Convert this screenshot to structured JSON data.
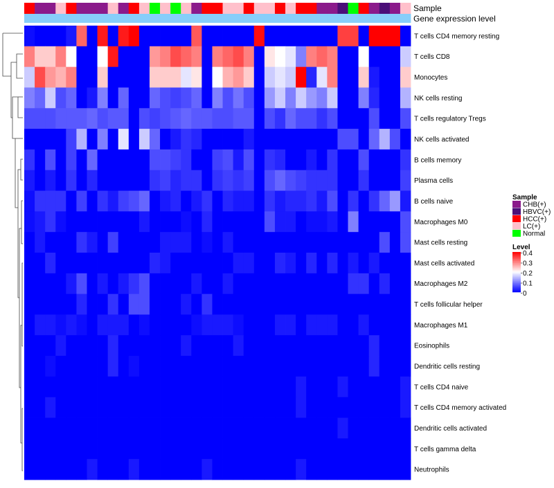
{
  "chart_data": {
    "type": "heatmap",
    "annotation_tracks": [
      "Sample",
      "Gene expression level"
    ],
    "annotation_colors": {
      "CHB(+)": "#8B1A8B",
      "HBVC(+)": "#4B0F78",
      "HCC(+)": "#FF0000",
      "LC(+)": "#FFC0CB",
      "Normal": "#00FF00",
      "Gene expression level": "#87CEFA"
    },
    "samples": [
      "HCC(+)",
      "CHB(+)",
      "CHB(+)",
      "LC(+)",
      "HCC(+)",
      "CHB(+)",
      "CHB(+)",
      "CHB(+)",
      "LC(+)",
      "CHB(+)",
      "HCC(+)",
      "LC(+)",
      "Normal",
      "LC(+)",
      "Normal",
      "LC(+)",
      "CHB(+)",
      "HCC(+)",
      "HCC(+)",
      "LC(+)",
      "LC(+)",
      "HCC(+)",
      "LC(+)",
      "LC(+)",
      "HCC(+)",
      "LC(+)",
      "HCC(+)",
      "HCC(+)",
      "CHB(+)",
      "CHB(+)",
      "HBVC(+)",
      "Normal",
      "HCC(+)",
      "CHB(+)",
      "HBVC(+)",
      "CHB(+)",
      "LC(+)"
    ],
    "rows": [
      "T cells CD4 memory resting",
      "T cells CD8",
      "Monocytes",
      "NK cells resting",
      "T cells regulatory  Tregs",
      "NK cells activated",
      "B cells memory",
      "Plasma cells",
      "B cells naive",
      "Macrophages M0",
      "Mast cells resting",
      "Mast cells activated",
      "Macrophages M2",
      "T cells follicular helper",
      "Macrophages M1",
      "Eosinophils",
      "Dendritic cells resting",
      "T cells CD4 naive",
      "T cells CD4 memory activated",
      "Dendritic cells activated",
      "T cells gamma delta",
      "Neutrophils"
    ],
    "values": [
      [
        0.01,
        0.0,
        0.0,
        0.0,
        0.02,
        0.32,
        0.0,
        0.38,
        0.0,
        0.38,
        0.4,
        0.0,
        0.0,
        0.0,
        0.0,
        0.0,
        0.33,
        0.0,
        0.0,
        0.0,
        0.0,
        0.0,
        0.39,
        0.0,
        0.0,
        0.0,
        0.0,
        0.0,
        0.0,
        0.0,
        0.35,
        0.35,
        0.0,
        0.4,
        0.4,
        0.4,
        0.0
      ],
      [
        0.3,
        0.24,
        0.24,
        0.3,
        0.2,
        0.0,
        0.0,
        0.2,
        0.38,
        0.0,
        0.0,
        0.0,
        0.28,
        0.3,
        0.34,
        0.32,
        0.3,
        0.0,
        0.3,
        0.32,
        0.34,
        0.3,
        0.0,
        0.22,
        0.2,
        0.18,
        0.1,
        0.3,
        0.32,
        0.3,
        0.0,
        0.0,
        0.2,
        0.0,
        0.0,
        0.0,
        0.16
      ],
      [
        0.16,
        0.34,
        0.28,
        0.26,
        0.3,
        0.0,
        0.0,
        0.24,
        0.0,
        0.0,
        0.0,
        0.0,
        0.24,
        0.24,
        0.24,
        0.18,
        0.22,
        0.0,
        0.2,
        0.26,
        0.28,
        0.24,
        0.0,
        0.16,
        0.18,
        0.16,
        0.4,
        0.03,
        0.18,
        0.3,
        0.0,
        0.0,
        0.24,
        0.02,
        0.0,
        0.0,
        0.24
      ],
      [
        0.1,
        0.08,
        0.16,
        0.06,
        0.08,
        0.0,
        0.02,
        0.1,
        0.0,
        0.08,
        0.0,
        0.0,
        0.08,
        0.06,
        0.05,
        0.06,
        0.08,
        0.0,
        0.1,
        0.06,
        0.09,
        0.06,
        0.0,
        0.12,
        0.16,
        0.1,
        0.16,
        0.12,
        0.1,
        0.16,
        0.0,
        0.0,
        0.1,
        0.03,
        0.0,
        0.0,
        0.14
      ],
      [
        0.06,
        0.06,
        0.06,
        0.07,
        0.07,
        0.07,
        0.08,
        0.06,
        0.07,
        0.07,
        0.0,
        0.06,
        0.05,
        0.06,
        0.07,
        0.08,
        0.07,
        0.07,
        0.06,
        0.06,
        0.07,
        0.07,
        0.0,
        0.06,
        0.04,
        0.08,
        0.06,
        0.06,
        0.04,
        0.06,
        0.0,
        0.0,
        0.0,
        0.06,
        0.0,
        0.0,
        0.06
      ],
      [
        0.0,
        0.0,
        0.0,
        0.0,
        0.05,
        0.14,
        0.0,
        0.1,
        0.0,
        0.18,
        0.0,
        0.16,
        0.08,
        0.0,
        0.02,
        0.04,
        0.03,
        0.0,
        0.0,
        0.0,
        0.0,
        0.02,
        0.0,
        0.0,
        0.0,
        0.0,
        0.0,
        0.0,
        0.0,
        0.0,
        0.06,
        0.06,
        0.0,
        0.08,
        0.14,
        0.06,
        0.0
      ],
      [
        0.04,
        0.0,
        0.06,
        0.0,
        0.05,
        0.0,
        0.08,
        0.0,
        0.0,
        0.0,
        0.0,
        0.0,
        0.06,
        0.06,
        0.05,
        0.04,
        0.0,
        0.0,
        0.05,
        0.06,
        0.02,
        0.06,
        0.0,
        0.04,
        0.03,
        0.0,
        0.0,
        0.02,
        0.0,
        0.04,
        0.0,
        0.0,
        0.06,
        0.0,
        0.0,
        0.0,
        0.04
      ],
      [
        0.02,
        0.0,
        0.02,
        0.0,
        0.04,
        0.0,
        0.03,
        0.0,
        0.0,
        0.0,
        0.0,
        0.0,
        0.04,
        0.05,
        0.03,
        0.04,
        0.04,
        0.0,
        0.04,
        0.05,
        0.04,
        0.05,
        0.0,
        0.06,
        0.08,
        0.06,
        0.05,
        0.04,
        0.04,
        0.04,
        0.0,
        0.0,
        0.04,
        0.0,
        0.0,
        0.0,
        0.05
      ],
      [
        0.01,
        0.04,
        0.04,
        0.04,
        0.0,
        0.05,
        0.0,
        0.04,
        0.02,
        0.05,
        0.06,
        0.08,
        0.0,
        0.02,
        0.03,
        0.0,
        0.02,
        0.04,
        0.0,
        0.03,
        0.02,
        0.02,
        0.0,
        0.04,
        0.02,
        0.03,
        0.03,
        0.04,
        0.02,
        0.06,
        0.0,
        0.04,
        0.0,
        0.04,
        0.08,
        0.12,
        0.02
      ],
      [
        0.01,
        0.02,
        0.04,
        0.01,
        0.0,
        0.0,
        0.0,
        0.0,
        0.0,
        0.0,
        0.0,
        0.02,
        0.0,
        0.0,
        0.0,
        0.01,
        0.0,
        0.03,
        0.0,
        0.0,
        0.0,
        0.0,
        0.0,
        0.06,
        0.02,
        0.02,
        0.0,
        0.01,
        0.01,
        0.02,
        0.0,
        0.1,
        0.0,
        0.0,
        0.0,
        0.0,
        0.06
      ],
      [
        0.0,
        0.02,
        0.0,
        0.0,
        0.0,
        0.04,
        0.02,
        0.0,
        0.05,
        0.0,
        0.0,
        0.0,
        0.0,
        0.02,
        0.02,
        0.02,
        0.0,
        0.01,
        0.0,
        0.02,
        0.0,
        0.0,
        0.0,
        0.0,
        0.0,
        0.0,
        0.0,
        0.0,
        0.0,
        0.0,
        0.0,
        0.0,
        0.0,
        0.0,
        0.06,
        0.0,
        0.06
      ],
      [
        0.0,
        0.0,
        0.03,
        0.0,
        0.0,
        0.0,
        0.0,
        0.0,
        0.0,
        0.0,
        0.0,
        0.0,
        0.03,
        0.02,
        0.0,
        0.0,
        0.0,
        0.0,
        0.0,
        0.0,
        0.02,
        0.02,
        0.0,
        0.0,
        0.03,
        0.02,
        0.0,
        0.03,
        0.0,
        0.03,
        0.0,
        0.02,
        0.0,
        0.02,
        0.0,
        0.0,
        0.0
      ],
      [
        0.0,
        0.0,
        0.0,
        0.0,
        0.02,
        0.06,
        0.0,
        0.02,
        0.0,
        0.02,
        0.04,
        0.06,
        0.0,
        0.0,
        0.0,
        0.0,
        0.02,
        0.0,
        0.0,
        0.02,
        0.0,
        0.0,
        0.0,
        0.0,
        0.0,
        0.0,
        0.0,
        0.0,
        0.0,
        0.0,
        0.0,
        0.04,
        0.04,
        0.0,
        0.03,
        0.0,
        0.0
      ],
      [
        0.0,
        0.0,
        0.0,
        0.0,
        0.0,
        0.03,
        0.0,
        0.0,
        0.04,
        0.0,
        0.06,
        0.06,
        0.0,
        0.0,
        0.0,
        0.02,
        0.0,
        0.04,
        0.0,
        0.0,
        0.0,
        0.0,
        0.0,
        0.0,
        0.0,
        0.0,
        0.0,
        0.0,
        0.0,
        0.0,
        0.0,
        0.0,
        0.0,
        0.0,
        0.0,
        0.0,
        0.0
      ],
      [
        0.0,
        0.02,
        0.02,
        0.01,
        0.02,
        0.01,
        0.0,
        0.02,
        0.02,
        0.02,
        0.0,
        0.01,
        0.0,
        0.0,
        0.0,
        0.0,
        0.01,
        0.02,
        0.02,
        0.02,
        0.01,
        0.0,
        0.0,
        0.0,
        0.02,
        0.02,
        0.0,
        0.02,
        0.02,
        0.02,
        0.0,
        0.0,
        0.02,
        0.0,
        0.0,
        0.0,
        0.0
      ],
      [
        0.0,
        0.0,
        0.0,
        0.02,
        0.0,
        0.0,
        0.0,
        0.0,
        0.03,
        0.0,
        0.0,
        0.0,
        0.0,
        0.0,
        0.0,
        0.02,
        0.0,
        0.0,
        0.0,
        0.0,
        0.02,
        0.0,
        0.0,
        0.0,
        0.0,
        0.0,
        0.0,
        0.0,
        0.0,
        0.0,
        0.0,
        0.0,
        0.0,
        0.03,
        0.0,
        0.0,
        0.0
      ],
      [
        0.0,
        0.0,
        0.01,
        0.0,
        0.0,
        0.0,
        0.0,
        0.0,
        0.03,
        0.0,
        0.01,
        0.0,
        0.0,
        0.0,
        0.0,
        0.0,
        0.0,
        0.0,
        0.0,
        0.0,
        0.0,
        0.0,
        0.0,
        0.0,
        0.0,
        0.0,
        0.0,
        0.0,
        0.0,
        0.0,
        0.0,
        0.0,
        0.0,
        0.03,
        0.0,
        0.0,
        0.0
      ],
      [
        0.0,
        0.0,
        0.0,
        0.0,
        0.0,
        0.0,
        0.0,
        0.0,
        0.0,
        0.0,
        0.0,
        0.0,
        0.0,
        0.0,
        0.0,
        0.0,
        0.0,
        0.0,
        0.0,
        0.0,
        0.0,
        0.0,
        0.0,
        0.0,
        0.0,
        0.0,
        0.02,
        0.0,
        0.0,
        0.0,
        0.02,
        0.0,
        0.0,
        0.0,
        0.0,
        0.0,
        0.02
      ],
      [
        0.0,
        0.0,
        0.02,
        0.0,
        0.0,
        0.0,
        0.0,
        0.0,
        0.0,
        0.0,
        0.0,
        0.0,
        0.0,
        0.0,
        0.0,
        0.0,
        0.0,
        0.0,
        0.0,
        0.0,
        0.0,
        0.0,
        0.0,
        0.0,
        0.0,
        0.0,
        0.02,
        0.0,
        0.0,
        0.0,
        0.0,
        0.0,
        0.0,
        0.0,
        0.0,
        0.0,
        0.02
      ],
      [
        0.0,
        0.0,
        0.0,
        0.0,
        0.0,
        0.0,
        0.0,
        0.0,
        0.0,
        0.0,
        0.0,
        0.0,
        0.0,
        0.0,
        0.0,
        0.0,
        0.0,
        0.0,
        0.0,
        0.0,
        0.0,
        0.0,
        0.0,
        0.0,
        0.0,
        0.0,
        0.0,
        0.0,
        0.0,
        0.0,
        0.02,
        0.0,
        0.0,
        0.0,
        0.0,
        0.0,
        0.0
      ],
      [
        0.0,
        0.0,
        0.0,
        0.0,
        0.0,
        0.0,
        0.0,
        0.0,
        0.0,
        0.0,
        0.0,
        0.0,
        0.0,
        0.0,
        0.0,
        0.0,
        0.0,
        0.0,
        0.0,
        0.0,
        0.0,
        0.0,
        0.0,
        0.0,
        0.0,
        0.0,
        0.0,
        0.0,
        0.0,
        0.0,
        0.0,
        0.0,
        0.0,
        0.0,
        0.0,
        0.0,
        0.0
      ],
      [
        0.0,
        0.0,
        0.0,
        0.0,
        0.0,
        0.0,
        0.02,
        0.0,
        0.0,
        0.0,
        0.02,
        0.0,
        0.0,
        0.0,
        0.0,
        0.0,
        0.0,
        0.02,
        0.0,
        0.0,
        0.0,
        0.0,
        0.0,
        0.0,
        0.0,
        0.0,
        0.02,
        0.0,
        0.0,
        0.0,
        0.0,
        0.0,
        0.0,
        0.0,
        0.0,
        0.0,
        0.0
      ]
    ],
    "color_scale": {
      "min": 0,
      "mid": 0.2,
      "max": 0.4,
      "low": "#0000FF",
      "midColor": "#FFFFFF",
      "high": "#FF0000"
    },
    "legend": {
      "sample_title": "Sample",
      "sample_entries": [
        "CHB(+)",
        "HBVC(+)",
        "HCC(+)",
        "LC(+)",
        "Normal"
      ],
      "level_title": "Level",
      "level_ticks": [
        "0.4",
        "0.3",
        "0.2",
        "0.1",
        "0"
      ],
      "placement": "right"
    }
  }
}
